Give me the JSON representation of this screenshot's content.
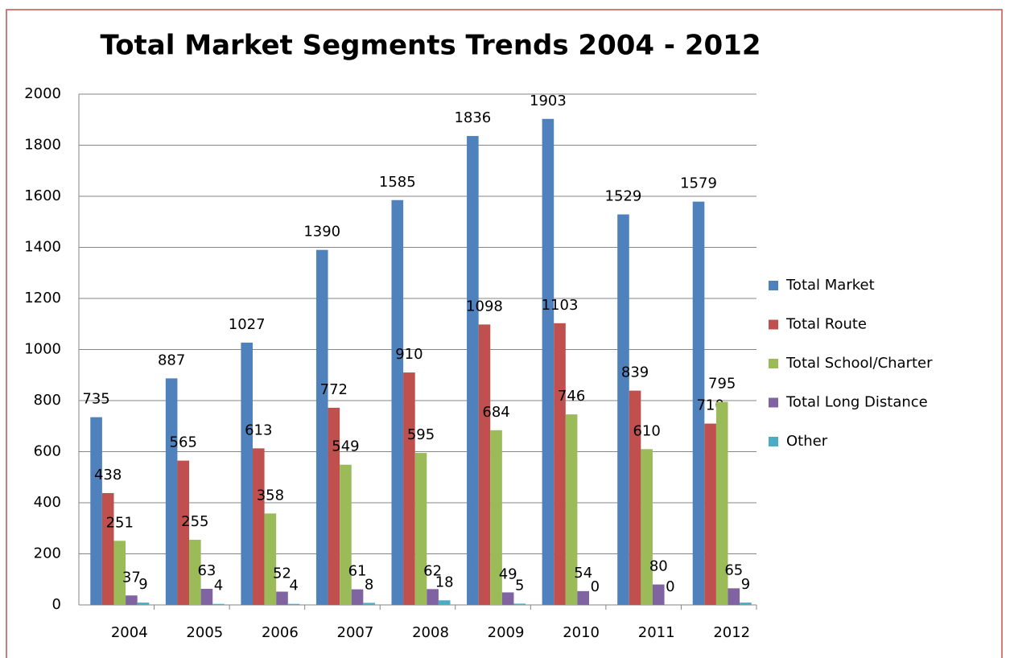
{
  "chart_data": {
    "type": "bar",
    "title": "Total Market Segments Trends 2004 - 2012",
    "categories": [
      "2004",
      "2005",
      "2006",
      "2007",
      "2008",
      "2009",
      "2010",
      "2011",
      "2012"
    ],
    "series": [
      {
        "name": "Total Market",
        "color": "#4f81bd",
        "values": [
          735,
          887,
          1027,
          1390,
          1585,
          1836,
          1903,
          1529,
          1579
        ]
      },
      {
        "name": "Total Route",
        "color": "#c0504d",
        "values": [
          438,
          565,
          613,
          772,
          910,
          1098,
          1103,
          839,
          710
        ]
      },
      {
        "name": "Total School/Charter",
        "color": "#9bbb59",
        "values": [
          251,
          255,
          358,
          549,
          595,
          684,
          746,
          610,
          795
        ]
      },
      {
        "name": "Total Long Distance",
        "color": "#8064a2",
        "values": [
          37,
          63,
          52,
          61,
          62,
          49,
          54,
          80,
          65
        ]
      },
      {
        "name": "Other",
        "color": "#4bacc6",
        "values": [
          9,
          4,
          4,
          8,
          18,
          5,
          0,
          0,
          9
        ]
      }
    ],
    "ylim": [
      0,
      2000
    ],
    "yticks": [
      0,
      200,
      400,
      600,
      800,
      1000,
      1200,
      1400,
      1600,
      1800,
      2000
    ],
    "grid": true,
    "legend": "right"
  }
}
